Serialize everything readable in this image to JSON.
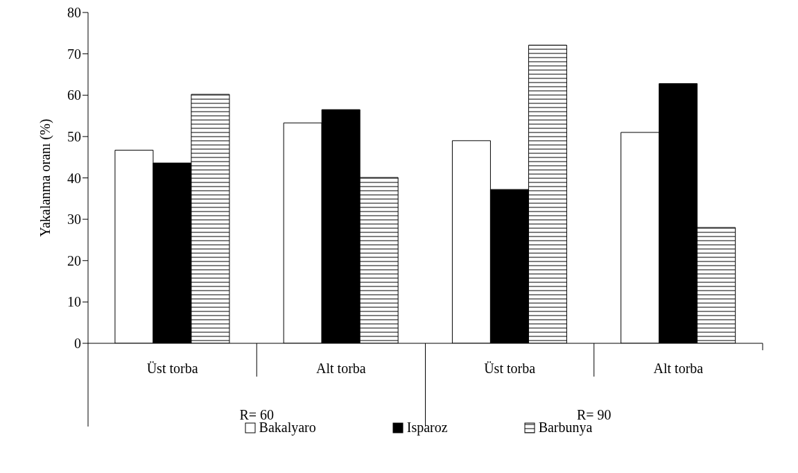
{
  "chart_data": {
    "type": "bar",
    "ylabel": "Yakalanma oranı (%)",
    "categories": [
      "Üst torba",
      "Alt torba",
      "Üst torba",
      "Alt torba"
    ],
    "series": [
      {
        "name": "Bakalyaro",
        "color": "#ffffff",
        "values": [
          46.7,
          53.3,
          49.0,
          51.0
        ]
      },
      {
        "name": "Isparoz",
        "color": "#000000",
        "values": [
          43.6,
          56.5,
          37.2,
          62.8
        ]
      },
      {
        "name": "Barbunya",
        "color": "#000000",
        "type": "bar",
        "values": [
          60.2,
          40.1,
          72.1,
          28.0
        ]
      }
    ],
    "annotations": [
      "R= 60",
      "R= 90"
    ],
    "ylim": [
      0,
      80
    ],
    "yticks": [
      0,
      10,
      20,
      30,
      40,
      50,
      60,
      70,
      80
    ],
    "grid": false,
    "legend": "bottom"
  }
}
